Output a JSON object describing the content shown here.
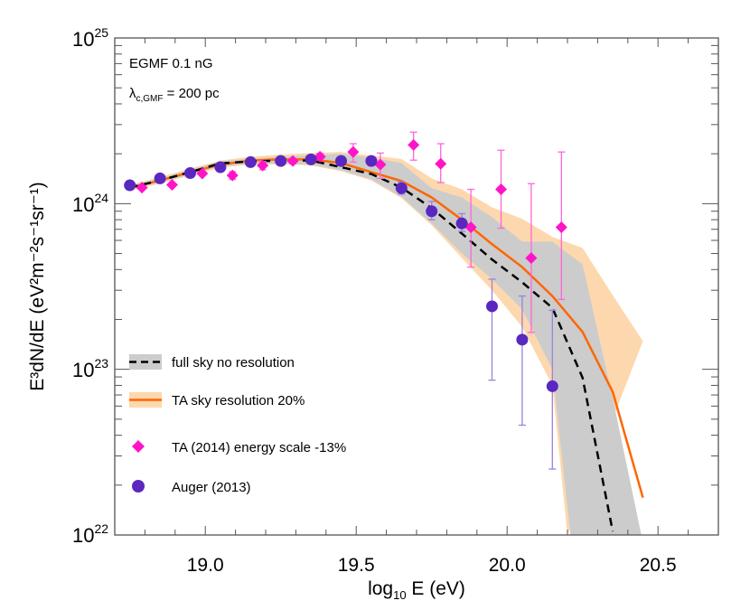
{
  "chart_data": {
    "type": "line",
    "xlabel_main": "log",
    "xlabel_sub": "10",
    "xlabel_rest": " E (eV)",
    "ylabel": "E³dN/dE (eV²m⁻²s⁻¹sr⁻¹)",
    "xlim": [
      18.7,
      20.7
    ],
    "ylim": [
      1e+22,
      1e+25
    ],
    "yscale": "log",
    "x_ticks": [
      "19.0",
      "19.5",
      "20.0",
      "20.5"
    ],
    "x_tick_values": [
      19.0,
      19.5,
      20.0,
      20.5
    ],
    "y_ticks": [
      {
        "base": "10",
        "exp": "22"
      },
      {
        "base": "10",
        "exp": "23"
      },
      {
        "base": "10",
        "exp": "24"
      },
      {
        "base": "10",
        "exp": "25"
      }
    ],
    "y_unit_scale": 1e+24,
    "annotations": {
      "egmf": "EGMF 0.1 nG",
      "lambda_symbol": "λ",
      "lambda_sub": "c,GMF",
      "lambda_rest": " = 200 pc"
    },
    "legend_placement": "left-lower",
    "colors": {
      "grey_band": "#cccccc",
      "orange_band": "#fdd8ae",
      "orange_line": "#ff6600",
      "dashed_line": "#000000",
      "ta": "#ff14c8",
      "ta_err": "#ff66d6",
      "auger": "#5a28c0",
      "auger_err": "#9b80dc"
    },
    "series": [
      {
        "name": "full sky no resolution",
        "kind": "dashed-line-with-band",
        "x": [
          18.75,
          18.85,
          18.95,
          19.05,
          19.15,
          19.25,
          19.35,
          19.45,
          19.55,
          19.65,
          19.75,
          19.85,
          19.95,
          20.05,
          20.15,
          20.25,
          20.35
        ],
        "y": [
          1.25,
          1.38,
          1.55,
          1.75,
          1.8,
          1.82,
          1.82,
          1.66,
          1.51,
          1.25,
          0.94,
          0.66,
          0.46,
          0.335,
          0.235,
          0.089,
          0.0105
        ],
        "band_upper_x": [
          18.75,
          18.85,
          18.95,
          19.05,
          19.15,
          19.25,
          19.35,
          19.45,
          19.55,
          19.65,
          19.75,
          19.85,
          19.95,
          20.05,
          20.15,
          20.25,
          20.35,
          20.45
        ],
        "band_upper": [
          1.28,
          1.42,
          1.6,
          1.8,
          1.87,
          1.92,
          1.95,
          2.0,
          1.9,
          1.76,
          1.24,
          1.09,
          0.83,
          0.59,
          0.59,
          0.43,
          0.067,
          0.009
        ],
        "band_lower_x": [
          18.75,
          18.85,
          18.95,
          19.05,
          19.15,
          19.25,
          19.35,
          19.45,
          19.55,
          19.65,
          19.75,
          19.85,
          19.95,
          20.05,
          20.15,
          20.21
        ],
        "band_lower": [
          1.22,
          1.34,
          1.5,
          1.68,
          1.74,
          1.75,
          1.72,
          1.59,
          1.4,
          1.1,
          0.76,
          0.5,
          0.35,
          0.23,
          0.1,
          0.01
        ]
      },
      {
        "name": "TA sky resolution 20%",
        "kind": "line-with-band",
        "x": [
          18.75,
          18.85,
          18.95,
          19.05,
          19.15,
          19.25,
          19.35,
          19.45,
          19.55,
          19.65,
          19.75,
          19.85,
          19.95,
          20.05,
          20.15,
          20.25,
          20.35,
          20.45
        ],
        "y": [
          1.25,
          1.38,
          1.55,
          1.72,
          1.82,
          1.85,
          1.85,
          1.76,
          1.55,
          1.37,
          1.09,
          0.8,
          0.57,
          0.414,
          0.277,
          0.168,
          0.073,
          0.0168
        ],
        "band_upper_x": [
          18.75,
          18.85,
          18.95,
          19.05,
          19.15,
          19.25,
          19.35,
          19.45,
          19.55,
          19.65,
          19.75,
          19.85,
          19.95,
          20.05,
          20.15,
          20.25,
          20.35,
          20.45
        ],
        "band_upper": [
          1.3,
          1.45,
          1.63,
          1.82,
          1.92,
          1.98,
          2.02,
          2.05,
          1.95,
          1.86,
          1.42,
          1.22,
          0.95,
          0.81,
          0.63,
          0.54,
          0.28,
          0.148
        ],
        "band_lower_x": [
          18.75,
          18.85,
          18.95,
          19.05,
          19.15,
          19.25,
          19.35,
          19.45,
          19.55,
          19.65,
          19.75,
          19.85,
          19.95,
          20.05,
          20.15,
          20.2
        ],
        "band_lower": [
          1.2,
          1.32,
          1.48,
          1.65,
          1.72,
          1.73,
          1.7,
          1.57,
          1.38,
          1.08,
          0.74,
          0.47,
          0.3,
          0.18,
          0.08,
          0.01
        ]
      },
      {
        "name": "TA (2014) energy scale -13%",
        "kind": "diamond",
        "x": [
          18.79,
          18.89,
          18.99,
          19.09,
          19.19,
          19.29,
          19.38,
          19.49,
          19.58,
          19.69,
          19.78,
          19.88,
          19.98,
          20.08,
          20.18
        ],
        "y": [
          1.25,
          1.3,
          1.52,
          1.48,
          1.7,
          1.81,
          1.92,
          2.05,
          1.72,
          2.26,
          1.74,
          0.72,
          1.22,
          0.47,
          0.72
        ],
        "err": [
          null,
          null,
          null,
          [
            1.4,
            1.56
          ],
          [
            1.6,
            1.8
          ],
          [
            1.74,
            1.88
          ],
          [
            1.84,
            2.01
          ],
          [
            1.78,
            2.3
          ],
          [
            1.42,
            2.02
          ],
          [
            1.83,
            2.7
          ],
          [
            1.34,
            2.3
          ],
          [
            0.414,
            1.22
          ],
          [
            0.711,
            2.1
          ],
          [
            0.167,
            1.32
          ],
          [
            0.264,
            2.05
          ]
        ]
      },
      {
        "name": "Auger (2013)",
        "kind": "circle",
        "x": [
          18.75,
          18.85,
          18.95,
          19.05,
          19.15,
          19.25,
          19.35,
          19.45,
          19.55,
          19.65,
          19.75,
          19.85,
          19.95,
          20.05,
          20.15
        ],
        "y": [
          1.29,
          1.42,
          1.53,
          1.66,
          1.78,
          1.81,
          1.85,
          1.81,
          1.81,
          1.24,
          0.9,
          0.76,
          0.24,
          0.151,
          0.079
        ],
        "err": [
          null,
          null,
          null,
          null,
          null,
          null,
          null,
          null,
          null,
          [
            1.14,
            1.35
          ],
          [
            0.8,
            1.03
          ],
          [
            0.68,
            0.87
          ],
          [
            0.086,
            0.35
          ],
          [
            0.046,
            0.277
          ],
          [
            0.025,
            0.227
          ]
        ]
      }
    ]
  }
}
